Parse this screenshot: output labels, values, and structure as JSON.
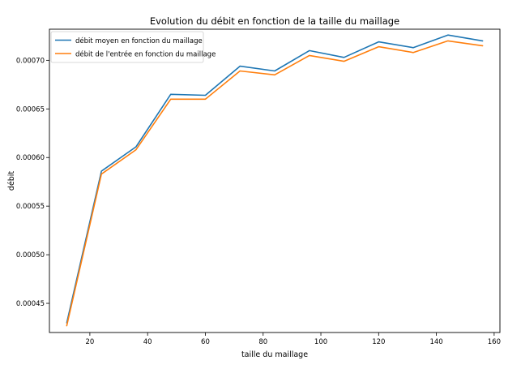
{
  "chart_data": {
    "type": "line",
    "title": "Evolution du débit en fonction de la taille du maillage",
    "xlabel": "taille du maillage",
    "ylabel": "débit",
    "xlim": [
      6,
      162
    ],
    "ylim": [
      0.00042,
      0.000732
    ],
    "xticks": [
      20,
      40,
      60,
      80,
      100,
      120,
      140,
      160
    ],
    "yticks": [
      0.00045,
      0.0005,
      0.00055,
      0.0006,
      0.00065,
      0.0007
    ],
    "xtick_labels": [
      "20",
      "40",
      "60",
      "80",
      "100",
      "120",
      "140",
      "160"
    ],
    "ytick_labels": [
      "0.00045",
      "0.00050",
      "0.00055",
      "0.00060",
      "0.00065",
      "0.00070"
    ],
    "grid": false,
    "legend_position": "top-left",
    "x": [
      12,
      24,
      36,
      48,
      60,
      72,
      84,
      96,
      108,
      120,
      132,
      144,
      156
    ],
    "series": [
      {
        "name": "débit moyen en fonction du maillage",
        "color": "#1f77b4",
        "values": [
          0.00043,
          0.000586,
          0.000611,
          0.000665,
          0.000664,
          0.000694,
          0.000689,
          0.00071,
          0.000703,
          0.000719,
          0.000713,
          0.000726,
          0.00072
        ]
      },
      {
        "name": "débit de l'entrée en fonction du maillage",
        "color": "#ff7f0e",
        "values": [
          0.000427,
          0.000583,
          0.000608,
          0.00066,
          0.00066,
          0.000689,
          0.000685,
          0.000705,
          0.000699,
          0.000714,
          0.000708,
          0.00072,
          0.000715
        ]
      }
    ]
  }
}
